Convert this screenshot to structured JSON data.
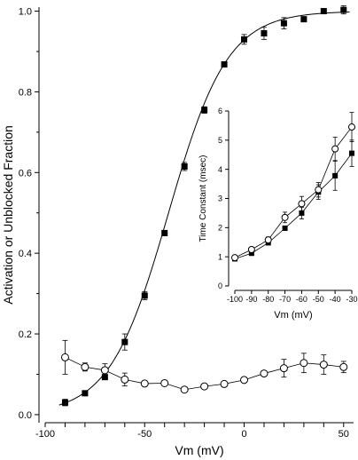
{
  "chart_data": [
    {
      "type": "scatter",
      "title": "",
      "xlabel": "Vm (mV)",
      "ylabel": "Activation or Unblocked Fraction",
      "xlim": [
        -100,
        55
      ],
      "ylim": [
        -0.02,
        1.01
      ],
      "xticks": [
        -100,
        -90,
        -80,
        -70,
        -60,
        -50,
        -40,
        -30,
        -20,
        -10,
        0,
        10,
        20,
        30,
        40,
        50
      ],
      "xtick_labels": [
        "-100",
        "-50",
        "0",
        "50"
      ],
      "xtick_label_values": [
        -100,
        -50,
        0,
        50
      ],
      "yticks": [
        0.0,
        0.2,
        0.4,
        0.6,
        0.8,
        1.0
      ],
      "ytick_labels": [
        "0.0",
        "0.2",
        "0.4",
        "0.6",
        "0.8",
        "1.0"
      ],
      "minor_yticks": [
        0.1,
        0.3,
        0.5,
        0.7,
        0.9
      ],
      "grid": false,
      "series": [
        {
          "marker": "filled-square",
          "x": [
            -90,
            -80,
            -70,
            -60,
            -50,
            -40,
            -30,
            -20,
            -10,
            0,
            10,
            20,
            30,
            40,
            50
          ],
          "y": [
            0.03,
            0.053,
            0.093,
            0.18,
            0.295,
            0.45,
            0.615,
            0.755,
            0.868,
            0.93,
            0.945,
            0.97,
            0.98,
            1.0,
            1.003
          ],
          "err": [
            0.008,
            0.003,
            0.006,
            0.02,
            0.01,
            0.006,
            0.01,
            0.008,
            0.006,
            0.012,
            0.015,
            0.014,
            0.006,
            0.005,
            0.01
          ]
        },
        {
          "marker": "open-circle",
          "x": [
            -90,
            -80,
            -70,
            -60,
            -50,
            -40,
            -30,
            -20,
            -10,
            0,
            10,
            20,
            30,
            40,
            50
          ],
          "y": [
            0.142,
            0.118,
            0.11,
            0.087,
            0.077,
            0.078,
            0.062,
            0.07,
            0.076,
            0.086,
            0.102,
            0.115,
            0.128,
            0.124,
            0.118
          ],
          "err": [
            0.042,
            0.01,
            0.016,
            0.016,
            0.006,
            0.004,
            0.005,
            0.005,
            0.005,
            0.006,
            0.006,
            0.022,
            0.024,
            0.024,
            0.014
          ]
        }
      ],
      "fit_curve": {
        "type": "boltzmann",
        "v_half": -38,
        "slope_k": 14.8,
        "min": 0.0,
        "max": 1.0,
        "x_range": [
          -93,
          53
        ]
      }
    },
    {
      "type": "scatter",
      "title": "",
      "xlabel": "Vm (mV)",
      "ylabel": "Time Constant (msec)",
      "xlim": [
        -100,
        -30
      ],
      "ylim": [
        0,
        6
      ],
      "xticks": [
        -100,
        -90,
        -80,
        -70,
        -60,
        -50,
        -40,
        -30
      ],
      "xtick_labels": [
        "-100",
        "-90",
        "-80",
        "-70",
        "-60",
        "-50",
        "-40",
        "-30"
      ],
      "yticks": [
        0,
        1,
        2,
        3,
        4,
        5,
        6
      ],
      "ytick_labels": [
        "0",
        "1",
        "2",
        "3",
        "4",
        "5",
        "6"
      ],
      "grid": false,
      "series": [
        {
          "marker": "filled-square",
          "x": [
            -100,
            -90,
            -80,
            -70,
            -60,
            -50,
            -40,
            -30
          ],
          "y": [
            0.93,
            1.12,
            1.48,
            1.98,
            2.5,
            3.22,
            3.78,
            4.55
          ],
          "err": [
            0.05,
            0.07,
            0.07,
            0.08,
            0.2,
            0.25,
            0.5,
            0.45
          ]
        },
        {
          "marker": "open-circle",
          "x": [
            -100,
            -90,
            -80,
            -70,
            -60,
            -50,
            -40,
            -30
          ],
          "y": [
            0.97,
            1.25,
            1.58,
            2.35,
            2.82,
            3.3,
            4.7,
            5.45
          ],
          "err": [
            0.06,
            0.08,
            0.1,
            0.18,
            0.25,
            0.25,
            0.4,
            0.5
          ]
        }
      ]
    }
  ]
}
